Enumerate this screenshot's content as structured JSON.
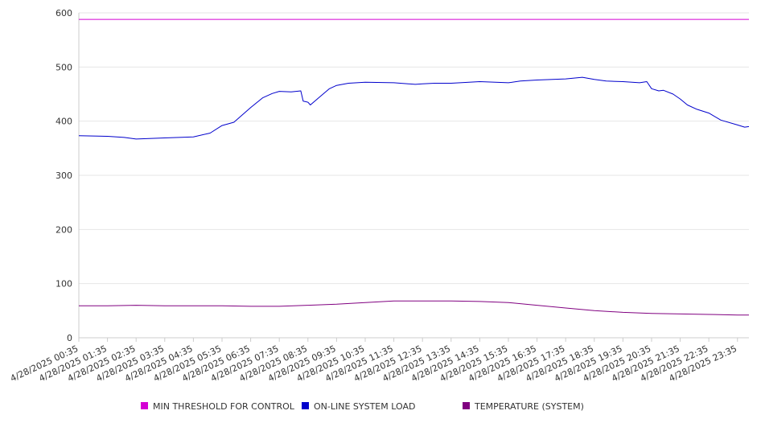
{
  "chart_data": {
    "type": "line",
    "ylim": [
      0,
      600
    ],
    "y_ticks": [
      0,
      100,
      200,
      300,
      400,
      500,
      600
    ],
    "grid": true,
    "legend_position": "bottom",
    "x": [
      "4/28/2025 00:35",
      "4/28/2025 01:35",
      "4/28/2025 02:35",
      "4/28/2025 03:35",
      "4/28/2025 04:35",
      "4/28/2025 05:35",
      "4/28/2025 06:35",
      "4/28/2025 07:35",
      "4/28/2025 08:35",
      "4/28/2025 09:35",
      "4/28/2025 10:35",
      "4/28/2025 11:35",
      "4/28/2025 12:35",
      "4/28/2025 13:35",
      "4/28/2025 14:35",
      "4/28/2025 15:35",
      "4/28/2025 16:35",
      "4/28/2025 17:35",
      "4/28/2025 18:35",
      "4/28/2025 19:35",
      "4/28/2025 20:35",
      "4/28/2025 21:35",
      "4/28/2025 22:35",
      "4/28/2025 23:35"
    ],
    "x_end": "4/28/2025 23:59",
    "series": [
      {
        "name": "MIN THRESHOLD FOR CONTROL",
        "color": "#d400d4",
        "points": [
          [
            "4/28/2025 00:35",
            588
          ],
          [
            "4/28/2025 23:59",
            588
          ]
        ]
      },
      {
        "name": "ON-LINE SYSTEM LOAD",
        "color": "#0000cc",
        "points": [
          [
            "4/28/2025 00:35",
            373
          ],
          [
            "4/28/2025 01:35",
            372
          ],
          [
            "4/28/2025 02:10",
            370
          ],
          [
            "4/28/2025 02:35",
            367
          ],
          [
            "4/28/2025 03:35",
            369
          ],
          [
            "4/28/2025 04:35",
            371
          ],
          [
            "4/28/2025 05:10",
            378
          ],
          [
            "4/28/2025 05:35",
            392
          ],
          [
            "4/28/2025 06:00",
            398
          ],
          [
            "4/28/2025 06:35",
            425
          ],
          [
            "4/28/2025 07:00",
            443
          ],
          [
            "4/28/2025 07:20",
            451
          ],
          [
            "4/28/2025 07:35",
            455
          ],
          [
            "4/28/2025 08:00",
            454
          ],
          [
            "4/28/2025 08:20",
            456
          ],
          [
            "4/28/2025 08:25",
            437
          ],
          [
            "4/28/2025 08:35",
            435
          ],
          [
            "4/28/2025 08:40",
            430
          ],
          [
            "4/28/2025 09:00",
            445
          ],
          [
            "4/28/2025 09:20",
            460
          ],
          [
            "4/28/2025 09:35",
            466
          ],
          [
            "4/28/2025 10:00",
            470
          ],
          [
            "4/28/2025 10:35",
            472
          ],
          [
            "4/28/2025 11:35",
            471
          ],
          [
            "4/28/2025 12:20",
            468
          ],
          [
            "4/28/2025 12:35",
            469
          ],
          [
            "4/28/2025 13:00",
            470
          ],
          [
            "4/28/2025 13:35",
            470
          ],
          [
            "4/28/2025 14:35",
            473
          ],
          [
            "4/28/2025 15:35",
            471
          ],
          [
            "4/28/2025 16:00",
            474
          ],
          [
            "4/28/2025 16:35",
            476
          ],
          [
            "4/28/2025 17:35",
            478
          ],
          [
            "4/28/2025 18:10",
            481
          ],
          [
            "4/28/2025 18:35",
            477
          ],
          [
            "4/28/2025 19:00",
            474
          ],
          [
            "4/28/2025 19:35",
            473
          ],
          [
            "4/28/2025 20:10",
            471
          ],
          [
            "4/28/2025 20:25",
            473
          ],
          [
            "4/28/2025 20:35",
            460
          ],
          [
            "4/28/2025 20:50",
            456
          ],
          [
            "4/28/2025 21:00",
            457
          ],
          [
            "4/28/2025 21:20",
            450
          ],
          [
            "4/28/2025 21:35",
            441
          ],
          [
            "4/28/2025 21:50",
            430
          ],
          [
            "4/28/2025 22:10",
            422
          ],
          [
            "4/28/2025 22:35",
            415
          ],
          [
            "4/28/2025 23:00",
            402
          ],
          [
            "4/28/2025 23:35",
            393
          ],
          [
            "4/28/2025 23:50",
            389
          ],
          [
            "4/28/2025 23:59",
            390
          ]
        ]
      },
      {
        "name": "TEMPERATURE (SYSTEM)",
        "color": "#800080",
        "points": [
          [
            "4/28/2025 00:35",
            59
          ],
          [
            "4/28/2025 01:35",
            59
          ],
          [
            "4/28/2025 02:35",
            60
          ],
          [
            "4/28/2025 03:35",
            59
          ],
          [
            "4/28/2025 04:35",
            59
          ],
          [
            "4/28/2025 05:35",
            59
          ],
          [
            "4/28/2025 06:35",
            58
          ],
          [
            "4/28/2025 07:35",
            58
          ],
          [
            "4/28/2025 08:35",
            60
          ],
          [
            "4/28/2025 09:35",
            62
          ],
          [
            "4/28/2025 10:35",
            65
          ],
          [
            "4/28/2025 11:35",
            68
          ],
          [
            "4/28/2025 12:35",
            68
          ],
          [
            "4/28/2025 13:35",
            68
          ],
          [
            "4/28/2025 14:35",
            67
          ],
          [
            "4/28/2025 15:35",
            65
          ],
          [
            "4/28/2025 16:35",
            60
          ],
          [
            "4/28/2025 17:35",
            55
          ],
          [
            "4/28/2025 18:35",
            50
          ],
          [
            "4/28/2025 19:35",
            47
          ],
          [
            "4/28/2025 20:35",
            45
          ],
          [
            "4/28/2025 21:35",
            44
          ],
          [
            "4/28/2025 22:35",
            43
          ],
          [
            "4/28/2025 23:35",
            42
          ],
          [
            "4/28/2025 23:59",
            42
          ]
        ]
      }
    ]
  }
}
